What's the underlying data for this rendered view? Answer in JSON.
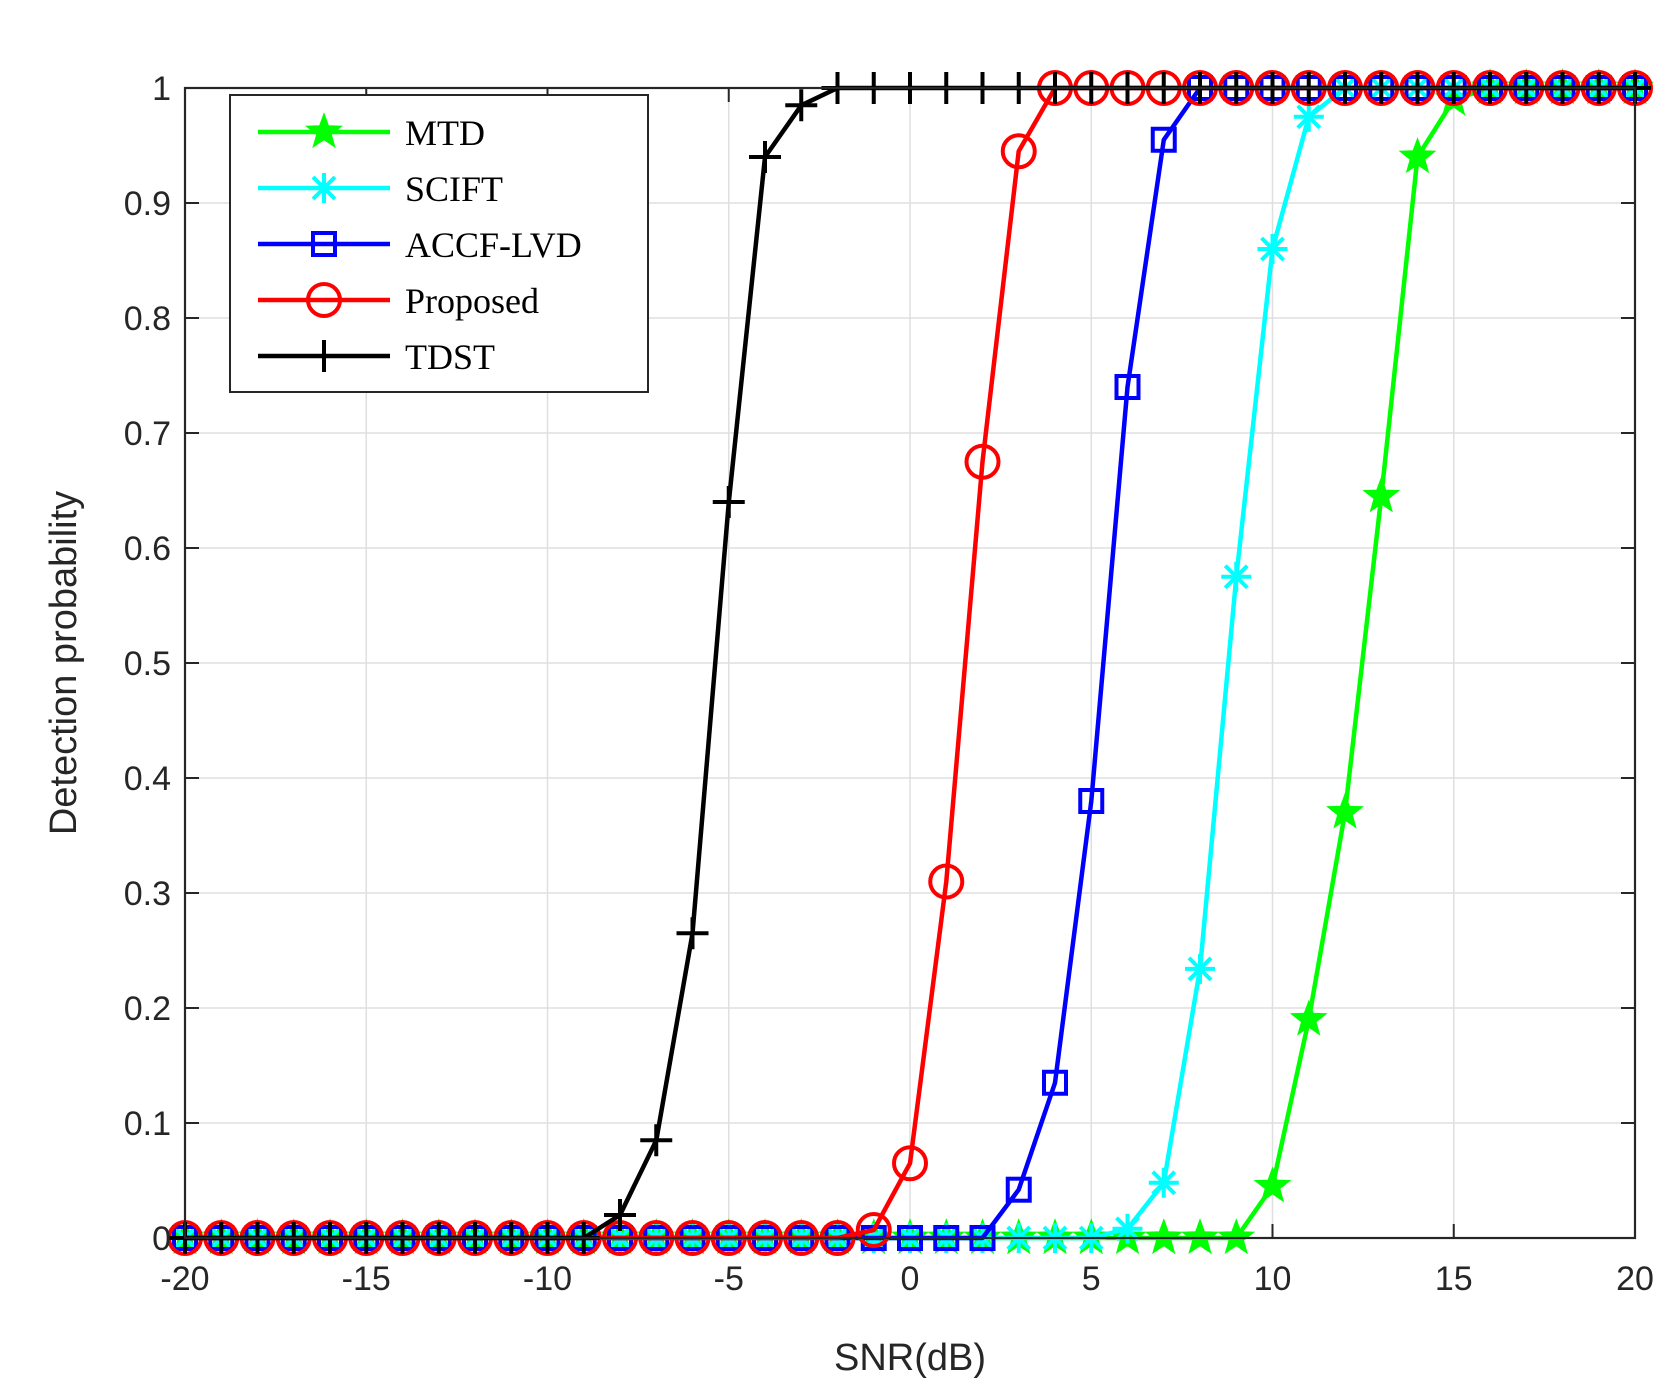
{
  "chart_data": {
    "type": "line",
    "title": "",
    "xlabel": "SNR(dB)",
    "ylabel": "Detection probability",
    "xlim": [
      -20,
      20
    ],
    "ylim": [
      0,
      1
    ],
    "xticks": [
      -20,
      -15,
      -10,
      -5,
      0,
      5,
      10,
      15,
      20
    ],
    "xtick_labels": [
      "-20",
      "-15",
      "-10",
      "-5",
      "0",
      "5",
      "10",
      "15",
      "20"
    ],
    "yticks": [
      0,
      0.1,
      0.2,
      0.3,
      0.4,
      0.5,
      0.6,
      0.7,
      0.8,
      0.9,
      1
    ],
    "ytick_labels": [
      "0",
      "0.1",
      "0.2",
      "0.3",
      "0.4",
      "0.5",
      "0.6",
      "0.7",
      "0.8",
      "0.9",
      "1"
    ],
    "grid": true,
    "legend_position": "top-left",
    "x": [
      -20,
      -19,
      -18,
      -17,
      -16,
      -15,
      -14,
      -13,
      -12,
      -11,
      -10,
      -9,
      -8,
      -7,
      -6,
      -5,
      -4,
      -3,
      -2,
      -1,
      0,
      1,
      2,
      3,
      4,
      5,
      6,
      7,
      8,
      9,
      10,
      11,
      12,
      13,
      14,
      15,
      16,
      17,
      18,
      19,
      20
    ],
    "series": [
      {
        "name": "MTD",
        "color": "#00ff00",
        "marker": "star",
        "values": [
          0,
          0,
          0,
          0,
          0,
          0,
          0,
          0,
          0,
          0,
          0,
          0,
          0,
          0,
          0,
          0,
          0,
          0,
          0,
          0,
          0,
          0,
          0,
          0,
          0,
          0,
          0,
          0,
          0,
          0,
          0.045,
          0.19,
          0.37,
          0.645,
          0.94,
          0.99,
          1,
          1,
          1,
          1,
          1
        ]
      },
      {
        "name": "SCIFT",
        "color": "#00ffff",
        "marker": "asterisk",
        "values": [
          0,
          0,
          0,
          0,
          0,
          0,
          0,
          0,
          0,
          0,
          0,
          0,
          0,
          0,
          0,
          0,
          0,
          0,
          0,
          0,
          0,
          0,
          0,
          0,
          0,
          0,
          0.008,
          0.048,
          0.234,
          0.575,
          0.86,
          0.975,
          1,
          1,
          1,
          1,
          1,
          1,
          1,
          1,
          1
        ]
      },
      {
        "name": "ACCF-LVD",
        "color": "#0000ff",
        "marker": "square",
        "values": [
          0,
          0,
          0,
          0,
          0,
          0,
          0,
          0,
          0,
          0,
          0,
          0,
          0,
          0,
          0,
          0,
          0,
          0,
          0,
          0,
          0,
          0,
          0,
          0.042,
          0.135,
          0.38,
          0.74,
          0.955,
          1,
          1,
          1,
          1,
          1,
          1,
          1,
          1,
          1,
          1,
          1,
          1,
          1
        ]
      },
      {
        "name": "Proposed",
        "color": "#ff0000",
        "marker": "circle",
        "values": [
          0,
          0,
          0,
          0,
          0,
          0,
          0,
          0,
          0,
          0,
          0,
          0,
          0,
          0,
          0,
          0,
          0,
          0,
          0,
          0.007,
          0.065,
          0.31,
          0.675,
          0.945,
          1,
          1,
          1,
          1,
          1,
          1,
          1,
          1,
          1,
          1,
          1,
          1,
          1,
          1,
          1,
          1,
          1
        ]
      },
      {
        "name": "TDST",
        "color": "#000000",
        "marker": "plus",
        "values": [
          0,
          0,
          0,
          0,
          0,
          0,
          0,
          0,
          0,
          0,
          0,
          0,
          0.02,
          0.085,
          0.265,
          0.64,
          0.94,
          0.985,
          1,
          1,
          1,
          1,
          1,
          1,
          1,
          1,
          1,
          1,
          1,
          1,
          1,
          1,
          1,
          1,
          1,
          1,
          1,
          1,
          1,
          1,
          1
        ]
      }
    ]
  }
}
